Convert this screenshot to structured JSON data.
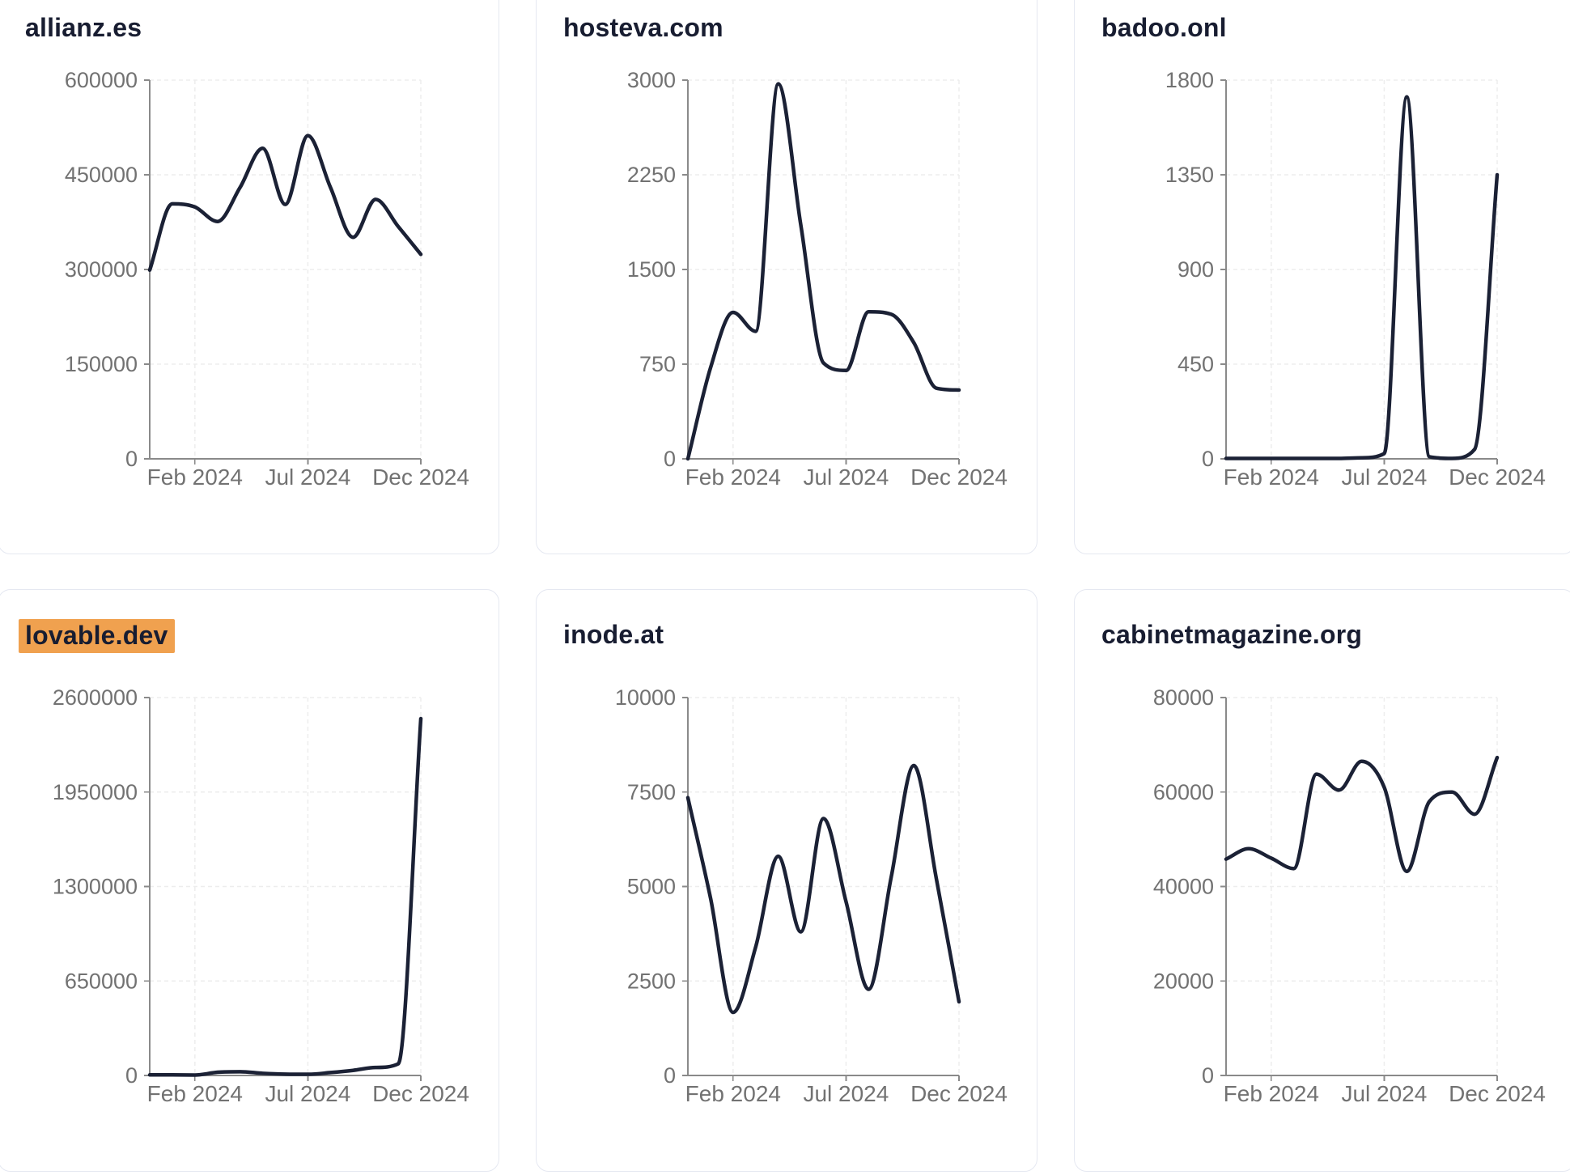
{
  "page": {
    "background": "#ffffff",
    "layout": {
      "rows": 2,
      "cols": 3
    }
  },
  "styles": {
    "line_color": "#1b2135",
    "grid_color": "#ededed",
    "axis_color": "#8a8a8a",
    "tick_label_color": "#727272",
    "title_color": "#181d31",
    "card_border_color": "#e5e8f1",
    "highlight_color": "#f0a14f"
  },
  "chart_data": [
    {
      "type": "line",
      "title": "allianz.es",
      "title_highlighted": false,
      "x": [
        "Dec 2023",
        "Jan 2024",
        "Feb 2024",
        "Mar 2024",
        "Apr 2024",
        "May 2024",
        "Jun 2024",
        "Jul 2024",
        "Aug 2024",
        "Sep 2024",
        "Oct 2024",
        "Nov 2024",
        "Dec 2024"
      ],
      "values": [
        299000,
        404000,
        399000,
        376000,
        430000,
        492000,
        403000,
        512000,
        430000,
        351000,
        411000,
        368000,
        324000
      ],
      "ylim": [
        0,
        600000
      ],
      "yticks": [
        0,
        150000,
        300000,
        450000,
        600000
      ],
      "xtick_labels": [
        "Feb 2024",
        "Jul 2024",
        "Dec 2024"
      ],
      "xtick_month_indices": [
        2,
        7,
        12
      ],
      "grid": "dashed",
      "legend": "none"
    },
    {
      "type": "line",
      "title": "hosteva.com",
      "title_highlighted": false,
      "x": [
        "Dec 2023",
        "Jan 2024",
        "Feb 2024",
        "Mar 2024",
        "Apr 2024",
        "May 2024",
        "Jun 2024",
        "Jul 2024",
        "Aug 2024",
        "Sep 2024",
        "Oct 2024",
        "Nov 2024",
        "Dec 2024"
      ],
      "values": [
        0,
        720,
        1160,
        1010,
        2970,
        1850,
        760,
        700,
        1165,
        1145,
        920,
        560,
        545
      ],
      "ylim": [
        0,
        3000
      ],
      "yticks": [
        0,
        750,
        1500,
        2250,
        3000
      ],
      "xtick_labels": [
        "Feb 2024",
        "Jul 2024",
        "Dec 2024"
      ],
      "xtick_month_indices": [
        2,
        7,
        12
      ],
      "grid": "dashed",
      "legend": "none"
    },
    {
      "type": "line",
      "title": "badoo.onl",
      "title_highlighted": false,
      "x": [
        "Dec 2023",
        "Jan 2024",
        "Feb 2024",
        "Mar 2024",
        "Apr 2024",
        "May 2024",
        "Jun 2024",
        "Jul 2024",
        "Aug 2024",
        "Sep 2024",
        "Oct 2024",
        "Nov 2024",
        "Dec 2024"
      ],
      "values": [
        2,
        2,
        2,
        2,
        2,
        2,
        5,
        25,
        1720,
        10,
        2,
        45,
        1350
      ],
      "ylim": [
        0,
        1800
      ],
      "yticks": [
        0,
        450,
        900,
        1350,
        1800
      ],
      "xtick_labels": [
        "Feb 2024",
        "Jul 2024",
        "Dec 2024"
      ],
      "xtick_month_indices": [
        2,
        7,
        12
      ],
      "grid": "dashed",
      "legend": "none"
    },
    {
      "type": "line",
      "title": "lovable.dev",
      "title_highlighted": true,
      "x": [
        "Dec 2023",
        "Jan 2024",
        "Feb 2024",
        "Mar 2024",
        "Apr 2024",
        "May 2024",
        "Jun 2024",
        "Jul 2024",
        "Aug 2024",
        "Sep 2024",
        "Oct 2024",
        "Nov 2024",
        "Dec 2024"
      ],
      "values": [
        4000,
        4000,
        3000,
        22000,
        26000,
        15000,
        9000,
        8000,
        20000,
        35000,
        55000,
        80000,
        2455000
      ],
      "ylim": [
        0,
        2600000
      ],
      "yticks": [
        0,
        650000,
        1300000,
        1950000,
        2600000
      ],
      "xtick_labels": [
        "Feb 2024",
        "Jul 2024",
        "Dec 2024"
      ],
      "xtick_month_indices": [
        2,
        7,
        12
      ],
      "grid": "dashed",
      "legend": "none"
    },
    {
      "type": "line",
      "title": "inode.at",
      "title_highlighted": false,
      "x": [
        "Dec 2023",
        "Jan 2024",
        "Feb 2024",
        "Mar 2024",
        "Apr 2024",
        "May 2024",
        "Jun 2024",
        "Jul 2024",
        "Aug 2024",
        "Sep 2024",
        "Oct 2024",
        "Nov 2024",
        "Dec 2024"
      ],
      "values": [
        7350,
        4700,
        1670,
        3400,
        5800,
        3800,
        6800,
        4600,
        2280,
        5250,
        8200,
        5200,
        1950
      ],
      "ylim": [
        0,
        10000
      ],
      "yticks": [
        0,
        2500,
        5000,
        7500,
        10000
      ],
      "xtick_labels": [
        "Feb 2024",
        "Jul 2024",
        "Dec 2024"
      ],
      "xtick_month_indices": [
        2,
        7,
        12
      ],
      "grid": "dashed",
      "legend": "none"
    },
    {
      "type": "line",
      "title": "cabinetmagazine.org",
      "title_highlighted": false,
      "x": [
        "Dec 2023",
        "Jan 2024",
        "Feb 2024",
        "Mar 2024",
        "Apr 2024",
        "May 2024",
        "Jun 2024",
        "Jul 2024",
        "Aug 2024",
        "Sep 2024",
        "Oct 2024",
        "Nov 2024",
        "Dec 2024"
      ],
      "values": [
        45800,
        48000,
        46000,
        43800,
        63800,
        60400,
        66500,
        61000,
        43200,
        58000,
        60000,
        55300,
        67300
      ],
      "ylim": [
        0,
        80000
      ],
      "yticks": [
        0,
        20000,
        40000,
        60000,
        80000
      ],
      "xtick_labels": [
        "Feb 2024",
        "Jul 2024",
        "Dec 2024"
      ],
      "xtick_month_indices": [
        2,
        7,
        12
      ],
      "grid": "dashed",
      "legend": "none"
    }
  ]
}
